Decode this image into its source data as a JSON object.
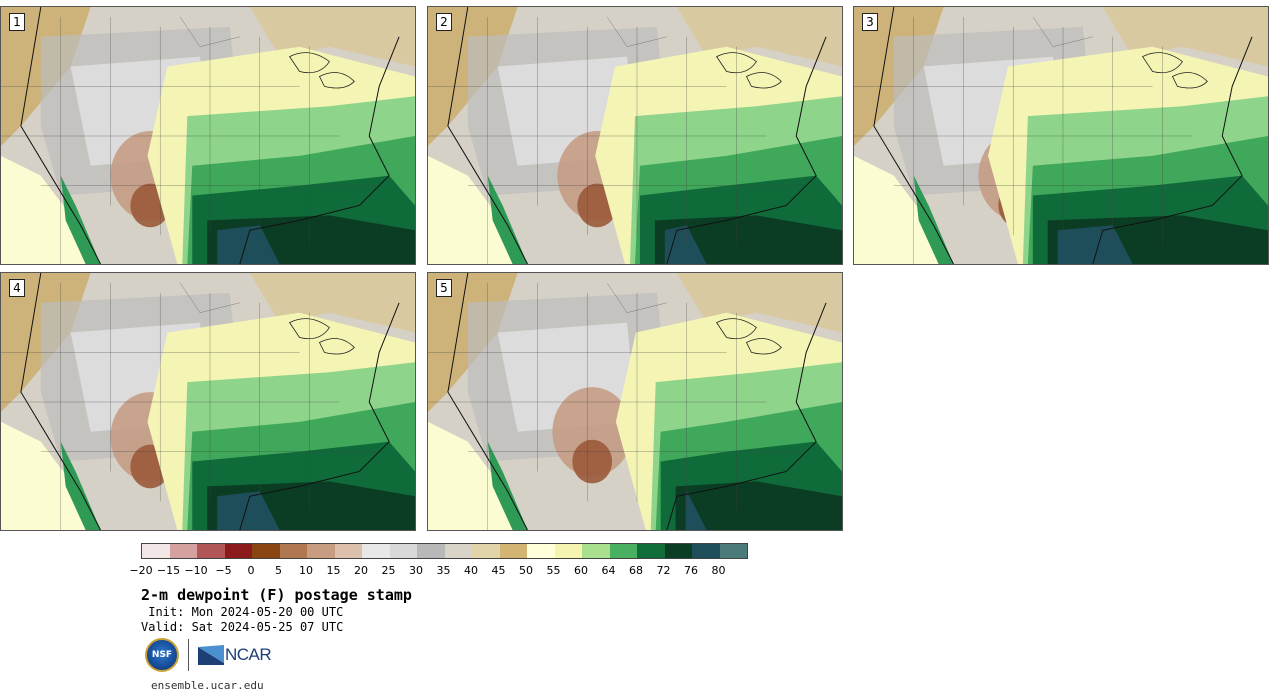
{
  "panels": [
    {
      "label": "1"
    },
    {
      "label": "2"
    },
    {
      "label": "3"
    },
    {
      "label": "4"
    },
    {
      "label": "5"
    }
  ],
  "colorbar": {
    "colors": [
      "#f2e6e6",
      "#d4a0a0",
      "#b05656",
      "#8b1a1a",
      "#8b4513",
      "#b07850",
      "#c89c80",
      "#dcc0ac",
      "#e8e8e8",
      "#d8d8d8",
      "#b8b8b8",
      "#d8d4c8",
      "#e0d4a8",
      "#d2b473",
      "#ffffd9",
      "#f5f5b0",
      "#a8e090",
      "#48b060",
      "#106c38",
      "#0b3d24",
      "#1e4e5a",
      "#4a7a7a"
    ],
    "tick_labels": [
      "−20",
      "−15",
      "−10",
      "−5",
      "0",
      "5",
      "10",
      "15",
      "20",
      "25",
      "30",
      "35",
      "40",
      "45",
      "50",
      "55",
      "60",
      "64",
      "68",
      "72",
      "76",
      "80"
    ]
  },
  "title": "2-m dewpoint (F) postage stamp",
  "init": " Init: Mon 2024-05-20 00 UTC",
  "valid": "Valid: Sat 2024-05-25 07 UTC",
  "logos": {
    "nsf": "NSF",
    "ncar": "NCAR"
  },
  "footer_url": "ensemble.ucar.edu"
}
